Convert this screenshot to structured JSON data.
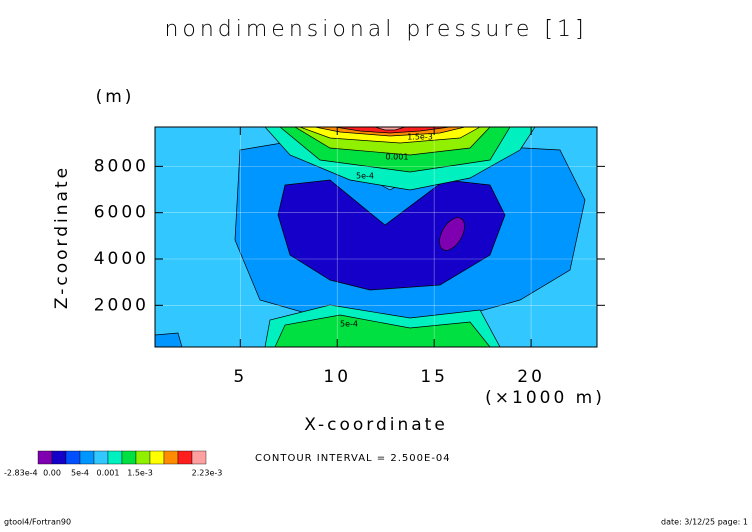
{
  "chart_data": {
    "type": "contour",
    "title": "nondimensional pressure [1]",
    "y_unit": "(m)",
    "y_label": "Z-coordinate",
    "x_label": "X-coordinate",
    "x_unit": "(×1000 m)",
    "xlim": [
      0.6,
      23.4
    ],
    "xticks": [
      5,
      10,
      15,
      20
    ],
    "ylim": [
      200,
      9700
    ],
    "yticks": [
      2000,
      4000,
      6000,
      8000
    ],
    "grid": true,
    "colorbar": {
      "colors": [
        "#7f00b0",
        "#1400c8",
        "#0050ff",
        "#0096ff",
        "#32c8ff",
        "#00f0c0",
        "#00e040",
        "#90f000",
        "#ffff00",
        "#ff8c00",
        "#ff1e1e",
        "#ffa0a0"
      ],
      "labels": [
        "-2.83e-4",
        "0.00",
        "5e-4",
        "0.001",
        "1.5e-3",
        "2.23e-3"
      ]
    },
    "contour_labels": [
      "1.5e-3",
      "0.001",
      "5e-4",
      "5e-4"
    ],
    "contour_interval": "CONTOUR INTERVAL = 2.500E-04",
    "footer_left": "gtool4/Fortran90",
    "footer_right": "date: 3/12/25 page: 1"
  }
}
